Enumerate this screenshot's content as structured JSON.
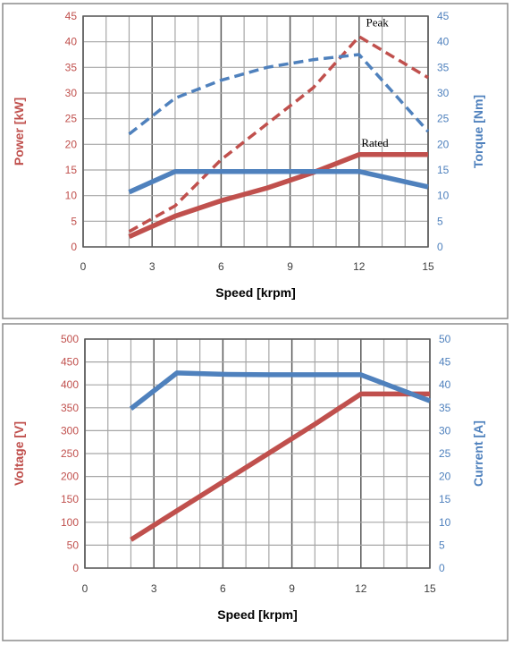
{
  "colors": {
    "red": "#c0504d",
    "blue": "#4f81bd",
    "grid": "#a6a6a6",
    "grid_major": "#595959",
    "panel_border": "#8c8c8c"
  },
  "chart_data": [
    {
      "type": "line",
      "xlabel": "Speed [krpm]",
      "ylabel": "Power [kW]",
      "y2label": "Torque [Nm]",
      "xlim": [
        0,
        15
      ],
      "ylim": [
        0,
        45
      ],
      "y2lim": [
        0,
        45
      ],
      "xticks": [
        0,
        3,
        6,
        9,
        12,
        15
      ],
      "yticks": [
        0,
        5,
        10,
        15,
        20,
        25,
        30,
        35,
        40,
        45
      ],
      "y2ticks": [
        0,
        5,
        10,
        15,
        20,
        25,
        30,
        35,
        40,
        45
      ],
      "grid": true,
      "annotations": [
        {
          "text": "Peak",
          "x": 12.3,
          "y": 43
        },
        {
          "text": "Rated",
          "x": 12.1,
          "y": 19.5
        }
      ],
      "series": [
        {
          "axis": "left",
          "color": "red",
          "style": "dashed",
          "x": [
            2,
            4,
            6,
            8,
            10,
            12,
            15
          ],
          "y": [
            3,
            8,
            17,
            24,
            31,
            41,
            33
          ]
        },
        {
          "axis": "left",
          "color": "red",
          "style": "solid",
          "x": [
            2,
            4,
            6,
            8,
            10,
            12,
            15
          ],
          "y": [
            2,
            6,
            9,
            11.5,
            14.5,
            18,
            18
          ]
        },
        {
          "axis": "right",
          "color": "blue",
          "style": "dashed",
          "x": [
            2,
            4,
            6,
            8,
            10,
            12,
            15
          ],
          "y": [
            22,
            29,
            32.5,
            35,
            36.5,
            37.5,
            22.5
          ]
        },
        {
          "axis": "right",
          "color": "blue",
          "style": "solid",
          "x": [
            2,
            4,
            6,
            8,
            10,
            12,
            15
          ],
          "y": [
            10.7,
            14.7,
            14.7,
            14.7,
            14.7,
            14.7,
            11.7
          ]
        }
      ]
    },
    {
      "type": "line",
      "xlabel": "Speed [krpm]",
      "ylabel": "Voltage [V]",
      "y2label": "Current [A]",
      "xlim": [
        0,
        15
      ],
      "ylim": [
        0,
        500
      ],
      "y2lim": [
        0,
        50
      ],
      "xticks": [
        0,
        3,
        6,
        9,
        12,
        15
      ],
      "yticks": [
        0,
        50,
        100,
        150,
        200,
        250,
        300,
        350,
        400,
        450,
        500
      ],
      "y2ticks": [
        0,
        5,
        10,
        15,
        20,
        25,
        30,
        35,
        40,
        45,
        50
      ],
      "grid": true,
      "annotations": [],
      "series": [
        {
          "axis": "left",
          "color": "red",
          "style": "solid",
          "x": [
            2,
            4,
            6,
            8,
            10,
            12,
            15
          ],
          "y": [
            62,
            125,
            188,
            251,
            314,
            380,
            380
          ]
        },
        {
          "axis": "right",
          "color": "blue",
          "style": "solid",
          "x": [
            2,
            4,
            6,
            8,
            10,
            12,
            15
          ],
          "y": [
            34.8,
            42.6,
            42.3,
            42.2,
            42.2,
            42.2,
            36.5
          ]
        }
      ]
    }
  ]
}
